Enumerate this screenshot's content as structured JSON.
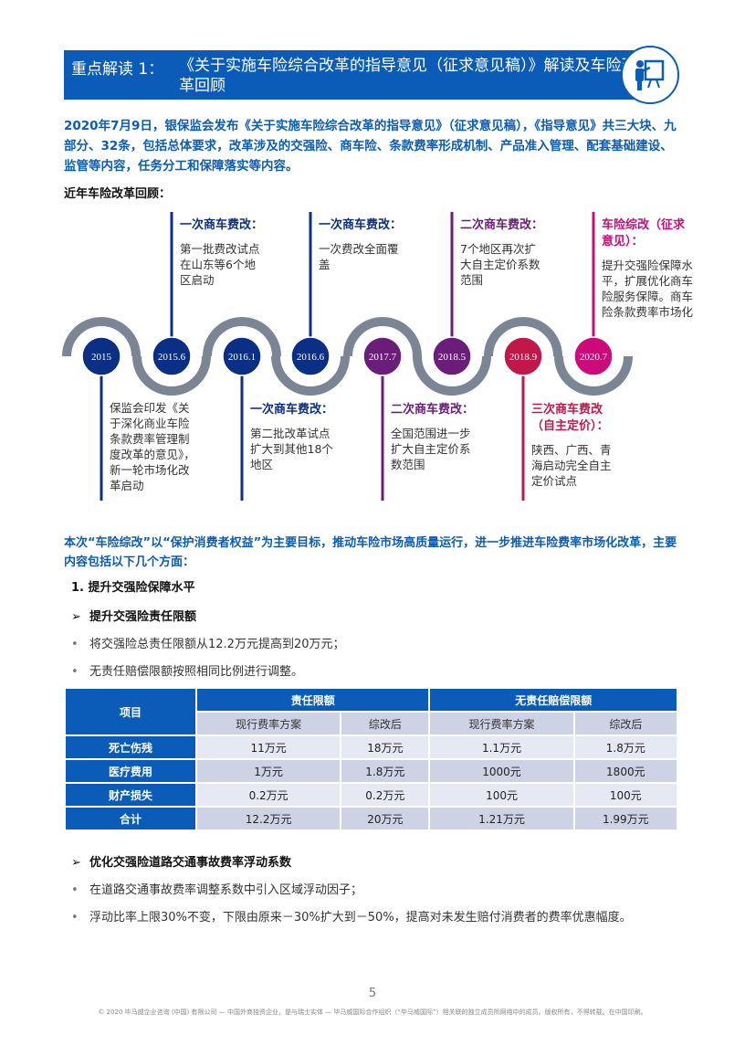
{
  "header": {
    "label": "重点解读 1：",
    "title": "《关于实施车险综合改革的指导意见（征求意见稿）》解读及车险改革回顾",
    "icon": "presentation-icon",
    "color": "#0a5cb8"
  },
  "intro": "2020年7月9日，银保监会发布《关于实施车险综合改革的指导意见》（征求意见稿），《指导意见》共三大块、九部分、32条，包括总体要求，改革涉及的交强险、商车险、条款费率形成机制、产品准入管理、配套基础建设、监管等内容，任务分工和保障落实等内容。",
  "review_title": "近年车险改革回顾：",
  "timeline": [
    {
      "date": "2015",
      "color": "#0c2f86",
      "heading": "",
      "text": "保监会印发《关于深化商业车险条款费率管理制度改革的意见》，新一轮市场化改革启动"
    },
    {
      "date": "2015.6",
      "color": "#0c2f86",
      "heading": "一次商车费改：",
      "text": "第一批费改试点在山东等6个地区启动"
    },
    {
      "date": "2016.1",
      "color": "#0c2f86",
      "heading": "一次商车费改：",
      "text": "第二批改革试点扩大到其他18个地区"
    },
    {
      "date": "2016.6",
      "color": "#0c2f86",
      "heading": "一次商车费改：",
      "text": "一次费改全面覆盖"
    },
    {
      "date": "2017.7",
      "color": "#6b1d7a",
      "heading": "二次商车费改：",
      "text": "全国范围进一步扩大自主定价系数范围"
    },
    {
      "date": "2018.5",
      "color": "#6b1d7a",
      "heading": "二次商车费改：",
      "text": "7个地区再次扩大自主定价系数范围"
    },
    {
      "date": "2018.9",
      "color": "#c0184a",
      "heading": "三次商车费改（自主定价）：",
      "text": "陕西、广西、青海启动完全自主定价试点"
    },
    {
      "date": "2020.7",
      "color": "#cc0a7a",
      "heading": "车险综改（征求意见）：",
      "text": "提升交强险保障水平，扩展优化商车险服务保障。商车险条款费率市场化"
    }
  ],
  "goal": "本次“车险综改”以“保护消费者权益”为主要目标，推动车险市场高质量运行，进一步推进车险费率市场化改革，主要内容包括以下几个方面：",
  "section1": "1. 提升交强险保障水平",
  "sub1": "提升交强险责任限额",
  "bullets1": [
    "将交强险总责任限额从12.2万元提高到20万元；",
    "无责任赔偿限额按照相同比例进行调整。"
  ],
  "table": {
    "col0": "项目",
    "group1": "责任限额",
    "group2": "无责任赔偿限额",
    "subheaders": [
      "现行费率方案",
      "综改后",
      "现行费率方案",
      "综改后"
    ],
    "rows": [
      {
        "item": "死亡伤残",
        "values": [
          "11万元",
          "18万元",
          "1.1万元",
          "1.8万元"
        ]
      },
      {
        "item": "医疗费用",
        "values": [
          "1万元",
          "1.8万元",
          "1000元",
          "1800元"
        ]
      },
      {
        "item": "财产损失",
        "values": [
          "0.2万元",
          "0.2万元",
          "100元",
          "100元"
        ]
      },
      {
        "item": "合计",
        "values": [
          "12.2万元",
          "20万元",
          "1.21万元",
          "1.99万元"
        ]
      }
    ]
  },
  "sub2": "优化交强险道路交通事故费率浮动系数",
  "bullets2": [
    "在道路交通事故费率调整系数中引入区域浮动因子；",
    "浮动比率上限30%不变，下限由原来－30%扩大到－50%，提高对未发生赔付消费者的费率优惠幅度。"
  ],
  "page_number": "5",
  "footer": "© 2020 毕马威企业咨询 (中国) 有限公司 — 中国外商独资企业，是与瑞士实体 — 毕马威国际合作组织（“毕马威国际”）相关联的独立成员所网络中的成员。版权所有，不得转载。在中国印刷。"
}
